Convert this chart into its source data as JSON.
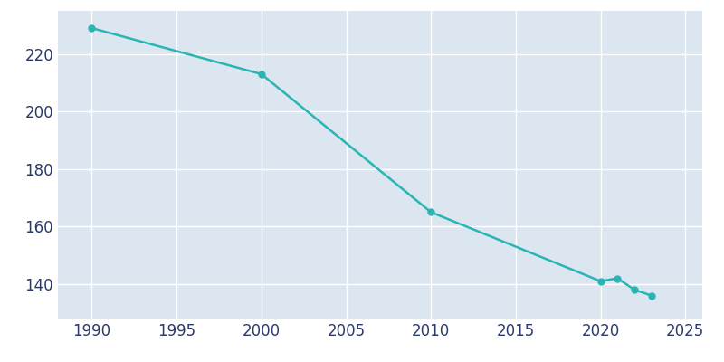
{
  "years": [
    1990,
    2000,
    2010,
    2020,
    2021,
    2022,
    2023
  ],
  "population": [
    229,
    213,
    165,
    141,
    142,
    138,
    136
  ],
  "line_color": "#2ab5b5",
  "marker_color": "#2ab5b5",
  "axes_bg_color": "#dce6f0",
  "fig_bg_color": "#ffffff",
  "grid_color": "#ffffff",
  "tick_label_color": "#2b3a6b",
  "xlim": [
    1988,
    2026
  ],
  "ylim": [
    128,
    235
  ],
  "xticks": [
    1990,
    1995,
    2000,
    2005,
    2010,
    2015,
    2020,
    2025
  ],
  "yticks": [
    140,
    160,
    180,
    200,
    220
  ],
  "marker_size": 5,
  "line_width": 1.8,
  "tick_fontsize": 12
}
